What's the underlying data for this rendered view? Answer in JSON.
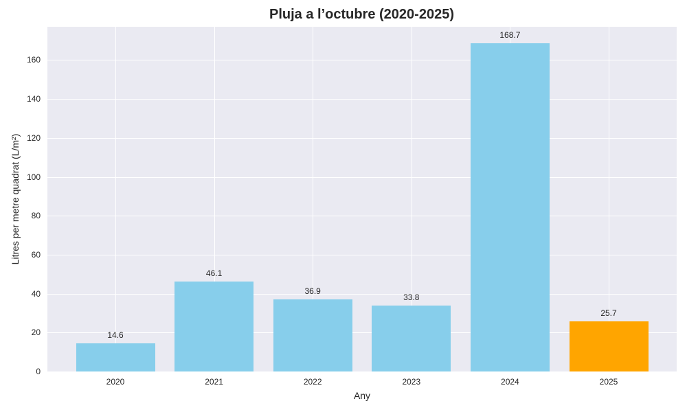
{
  "chart_data": {
    "type": "bar",
    "title": "Pluja a l’octubre (2020-2025)",
    "xlabel": "Any",
    "ylabel": "Litres per metre quadrat (L/m²)",
    "categories": [
      "2020",
      "2021",
      "2022",
      "2023",
      "2024",
      "2025"
    ],
    "values": [
      14.6,
      46.1,
      36.9,
      33.8,
      168.7,
      25.7
    ],
    "value_labels": [
      "14.6",
      "46.1",
      "36.9",
      "33.8",
      "168.7",
      "25.7"
    ],
    "bar_colors": [
      "#87ceeb",
      "#87ceeb",
      "#87ceeb",
      "#87ceeb",
      "#87ceeb",
      "#ffa500"
    ],
    "highlight": {
      "category": "2025",
      "color": "#ffa500"
    },
    "ylim": [
      0,
      177.1
    ],
    "yticks": [
      "0",
      "20",
      "40",
      "60",
      "80",
      "100",
      "120",
      "140",
      "160"
    ],
    "grid": true,
    "background": "#eaeaf2",
    "legend": null
  }
}
